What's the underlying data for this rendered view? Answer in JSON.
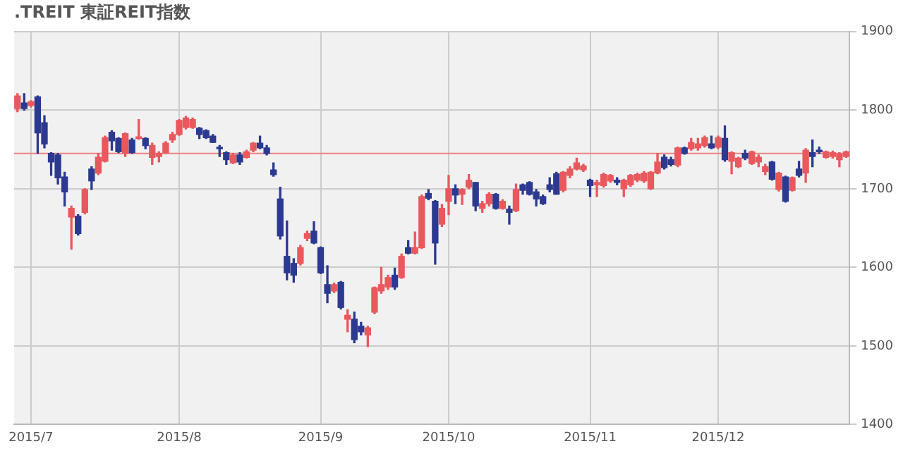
{
  "chart_data": {
    "type": "candlestick",
    "title": ".TREIT 東証REIT指数",
    "categories": [
      null,
      null,
      "2015/7",
      null,
      null,
      null,
      null,
      null,
      null,
      null,
      null,
      null,
      null,
      null,
      null,
      null,
      null,
      null,
      null,
      null,
      null,
      null,
      null,
      null,
      "2015/8",
      null,
      null,
      null,
      null,
      null,
      null,
      null,
      null,
      null,
      null,
      null,
      null,
      null,
      null,
      null,
      null,
      null,
      null,
      null,
      null,
      "2015/9",
      null,
      null,
      null,
      null,
      null,
      null,
      null,
      null,
      null,
      null,
      null,
      null,
      null,
      null,
      null,
      null,
      null,
      null,
      "2015/10",
      null,
      null,
      null,
      null,
      null,
      null,
      null,
      null,
      null,
      null,
      null,
      null,
      null,
      null,
      null,
      null,
      null,
      null,
      null,
      null,
      "2015/11",
      null,
      null,
      null,
      null,
      null,
      null,
      null,
      null,
      null,
      null,
      null,
      null,
      null,
      null,
      null,
      null,
      null,
      null,
      "2015/12",
      null,
      null,
      null,
      null,
      null,
      null,
      null,
      null,
      null,
      null,
      null,
      null,
      null,
      null,
      null,
      null,
      null,
      null,
      null
    ],
    "ohlc": [
      [
        1802,
        1821,
        1798,
        1818
      ],
      [
        1809,
        1821,
        1800,
        1802
      ],
      [
        1806,
        1812,
        1804,
        1811
      ],
      [
        1817,
        1818,
        1745,
        1771
      ],
      [
        1784,
        1793,
        1752,
        1757
      ],
      [
        1745,
        1746,
        1717,
        1734
      ],
      [
        1743,
        1745,
        1706,
        1714
      ],
      [
        1715,
        1721,
        1678,
        1696
      ],
      [
        1664,
        1678,
        1623,
        1675
      ],
      [
        1665,
        1667,
        1641,
        1643
      ],
      [
        1670,
        1700,
        1668,
        1699
      ],
      [
        1725,
        1728,
        1699,
        1710
      ],
      [
        1720,
        1745,
        1718,
        1740
      ],
      [
        1735,
        1767,
        1734,
        1765
      ],
      [
        1772,
        1774,
        1749,
        1761
      ],
      [
        1764,
        1765,
        1746,
        1747
      ],
      [
        1745,
        1771,
        1741,
        1770
      ],
      [
        1762,
        1764,
        1745,
        1746
      ],
      [
        1764,
        1788,
        1763,
        1766
      ],
      [
        1764,
        1765,
        1751,
        1755
      ],
      [
        1740,
        1758,
        1731,
        1755
      ],
      [
        1741,
        1747,
        1734,
        1745
      ],
      [
        1746,
        1760,
        1745,
        1758
      ],
      [
        1762,
        1772,
        1759,
        1769
      ],
      [
        1769,
        1788,
        1768,
        1787
      ],
      [
        1778,
        1792,
        1776,
        1790
      ],
      [
        1778,
        1790,
        1777,
        1788
      ],
      [
        1777,
        1778,
        1764,
        1769
      ],
      [
        1774,
        1775,
        1764,
        1765
      ],
      [
        1767,
        1769,
        1759,
        1759
      ],
      [
        1752,
        1755,
        1741,
        1751
      ],
      [
        1746,
        1747,
        1731,
        1737
      ],
      [
        1733,
        1745,
        1732,
        1743
      ],
      [
        1743,
        1746,
        1731,
        1734
      ],
      [
        1740,
        1749,
        1739,
        1747
      ],
      [
        1749,
        1759,
        1747,
        1758
      ],
      [
        1758,
        1767,
        1751,
        1752
      ],
      [
        1752,
        1755,
        1743,
        1745
      ],
      [
        1724,
        1733,
        1716,
        1718
      ],
      [
        1687,
        1702,
        1636,
        1640
      ],
      [
        1614,
        1659,
        1584,
        1593
      ],
      [
        1605,
        1611,
        1581,
        1590
      ],
      [
        1605,
        1628,
        1603,
        1625
      ],
      [
        1637,
        1646,
        1634,
        1643
      ],
      [
        1646,
        1658,
        1630,
        1631
      ],
      [
        1625,
        1626,
        1592,
        1593
      ],
      [
        1578,
        1602,
        1555,
        1567
      ],
      [
        1570,
        1580,
        1568,
        1578
      ],
      [
        1581,
        1582,
        1547,
        1549
      ],
      [
        1534,
        1546,
        1518,
        1539
      ],
      [
        1534,
        1543,
        1504,
        1508
      ],
      [
        1525,
        1530,
        1514,
        1518
      ],
      [
        1514,
        1525,
        1499,
        1523
      ],
      [
        1543,
        1575,
        1541,
        1574
      ],
      [
        1570,
        1600,
        1567,
        1578
      ],
      [
        1575,
        1590,
        1572,
        1587
      ],
      [
        1590,
        1599,
        1572,
        1575
      ],
      [
        1587,
        1617,
        1586,
        1614
      ],
      [
        1625,
        1634,
        1617,
        1618
      ],
      [
        1618,
        1645,
        1617,
        1625
      ],
      [
        1625,
        1692,
        1624,
        1690
      ],
      [
        1694,
        1699,
        1686,
        1688
      ],
      [
        1684,
        1685,
        1604,
        1631
      ],
      [
        1655,
        1680,
        1652,
        1675
      ],
      [
        1684,
        1717,
        1667,
        1700
      ],
      [
        1700,
        1705,
        1681,
        1692
      ],
      [
        1693,
        1700,
        1680,
        1699
      ],
      [
        1702,
        1718,
        1700,
        1711
      ],
      [
        1708,
        1708,
        1672,
        1678
      ],
      [
        1675,
        1684,
        1670,
        1681
      ],
      [
        1681,
        1695,
        1678,
        1693
      ],
      [
        1693,
        1694,
        1674,
        1675
      ],
      [
        1675,
        1686,
        1674,
        1684
      ],
      [
        1674,
        1678,
        1655,
        1670
      ],
      [
        1672,
        1706,
        1671,
        1699
      ],
      [
        1705,
        1706,
        1693,
        1698
      ],
      [
        1708,
        1709,
        1692,
        1693
      ],
      [
        1696,
        1699,
        1678,
        1687
      ],
      [
        1690,
        1692,
        1680,
        1681
      ],
      [
        1705,
        1714,
        1696,
        1699
      ],
      [
        1719,
        1721,
        1693,
        1693
      ],
      [
        1698,
        1722,
        1696,
        1721
      ],
      [
        1717,
        1728,
        1714,
        1725
      ],
      [
        1725,
        1739,
        1724,
        1733
      ],
      [
        1724,
        1731,
        1722,
        1729
      ],
      [
        1711,
        1712,
        1690,
        1704
      ],
      [
        1705,
        1711,
        1690,
        1708
      ],
      [
        1704,
        1720,
        1702,
        1718
      ],
      [
        1710,
        1718,
        1708,
        1717
      ],
      [
        1711,
        1714,
        1705,
        1708
      ],
      [
        1700,
        1712,
        1690,
        1711
      ],
      [
        1705,
        1718,
        1703,
        1717
      ],
      [
        1711,
        1720,
        1709,
        1718
      ],
      [
        1710,
        1722,
        1708,
        1720
      ],
      [
        1700,
        1722,
        1699,
        1721
      ],
      [
        1720,
        1745,
        1719,
        1734
      ],
      [
        1740,
        1743,
        1725,
        1727
      ],
      [
        1737,
        1740,
        1729,
        1731
      ],
      [
        1730,
        1753,
        1728,
        1752
      ],
      [
        1752,
        1753,
        1744,
        1745
      ],
      [
        1751,
        1764,
        1749,
        1759
      ],
      [
        1752,
        1764,
        1749,
        1757
      ],
      [
        1755,
        1767,
        1753,
        1765
      ],
      [
        1757,
        1767,
        1751,
        1752
      ],
      [
        1753,
        1767,
        1751,
        1765
      ],
      [
        1764,
        1780,
        1735,
        1737
      ],
      [
        1735,
        1747,
        1719,
        1746
      ],
      [
        1728,
        1740,
        1727,
        1739
      ],
      [
        1745,
        1749,
        1737,
        1739
      ],
      [
        1732,
        1748,
        1731,
        1747
      ],
      [
        1734,
        1743,
        1728,
        1740
      ],
      [
        1722,
        1731,
        1718,
        1728
      ],
      [
        1734,
        1735,
        1711,
        1712
      ],
      [
        1699,
        1721,
        1697,
        1720
      ],
      [
        1715,
        1716,
        1683,
        1684
      ],
      [
        1698,
        1715,
        1697,
        1714
      ],
      [
        1725,
        1735,
        1715,
        1717
      ],
      [
        1720,
        1751,
        1708,
        1749
      ],
      [
        1746,
        1762,
        1728,
        1741
      ],
      [
        1749,
        1753,
        1745,
        1747
      ],
      [
        1740,
        1748,
        1739,
        1747
      ],
      [
        1741,
        1748,
        1739,
        1746
      ],
      [
        1737,
        1746,
        1728,
        1744
      ],
      [
        1741,
        1748,
        1740,
        1747
      ]
    ],
    "colors": [
      "#e8585c",
      "#2b3990",
      "#e8585c",
      "#2b3990",
      "#2b3990",
      "#2b3990",
      "#2b3990",
      "#2b3990",
      "#e8585c",
      "#2b3990",
      "#e8585c",
      "#2b3990",
      "#e8585c",
      "#e8585c",
      "#2b3990",
      "#2b3990",
      "#e8585c",
      "#2b3990",
      "#e8585c",
      "#2b3990",
      "#e8585c",
      "#e8585c",
      "#e8585c",
      "#e8585c",
      "#e8585c",
      "#e8585c",
      "#e8585c",
      "#2b3990",
      "#2b3990",
      "#2b3990",
      "#2b3990",
      "#2b3990",
      "#e8585c",
      "#2b3990",
      "#e8585c",
      "#e8585c",
      "#2b3990",
      "#2b3990",
      "#2b3990",
      "#2b3990",
      "#2b3990",
      "#2b3990",
      "#e8585c",
      "#e8585c",
      "#2b3990",
      "#2b3990",
      "#2b3990",
      "#e8585c",
      "#2b3990",
      "#e8585c",
      "#2b3990",
      "#2b3990",
      "#e8585c",
      "#e8585c",
      "#e8585c",
      "#e8585c",
      "#2b3990",
      "#e8585c",
      "#2b3990",
      "#e8585c",
      "#e8585c",
      "#2b3990",
      "#2b3990",
      "#e8585c",
      "#e8585c",
      "#2b3990",
      "#e8585c",
      "#e8585c",
      "#2b3990",
      "#e8585c",
      "#e8585c",
      "#2b3990",
      "#e8585c",
      "#2b3990",
      "#e8585c",
      "#2b3990",
      "#2b3990",
      "#2b3990",
      "#2b3990",
      "#2b3990",
      "#2b3990",
      "#e8585c",
      "#e8585c",
      "#e8585c",
      "#e8585c",
      "#2b3990",
      "#e8585c",
      "#e8585c",
      "#e8585c",
      "#2b3990",
      "#e8585c",
      "#e8585c",
      "#e8585c",
      "#e8585c",
      "#e8585c",
      "#e8585c",
      "#2b3990",
      "#2b3990",
      "#e8585c",
      "#2b3990",
      "#e8585c",
      "#e8585c",
      "#e8585c",
      "#2b3990",
      "#e8585c",
      "#2b3990",
      "#e8585c",
      "#e8585c",
      "#2b3990",
      "#e8585c",
      "#e8585c",
      "#e8585c",
      "#2b3990",
      "#e8585c",
      "#2b3990",
      "#e8585c",
      "#2b3990",
      "#e8585c",
      "#2b3990",
      "#2b3990",
      "#e8585c",
      "#e8585c",
      "#e8585c",
      "#e8585c"
    ],
    "ylim": [
      1400,
      1900
    ],
    "yticks": [
      1400,
      1500,
      1600,
      1700,
      1800,
      1900
    ],
    "grid": true,
    "ref_lines": [
      {
        "axis": "y",
        "value": 1745,
        "color": "#f08080"
      }
    ]
  }
}
